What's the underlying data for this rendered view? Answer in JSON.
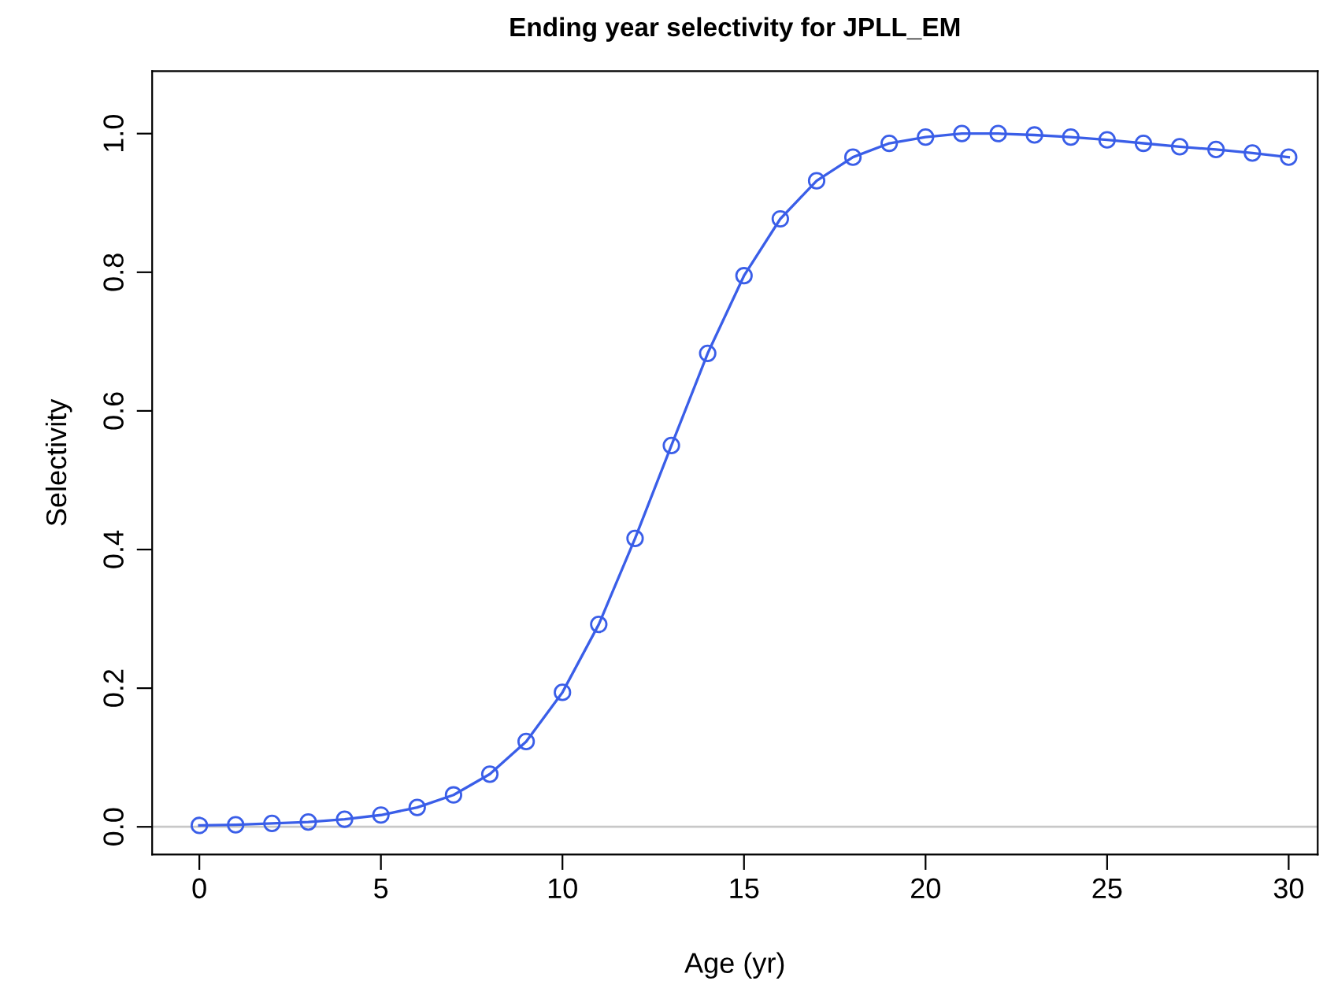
{
  "chart_data": {
    "type": "line",
    "title": "Ending year selectivity for JPLL_EM",
    "xlabel": "Age (yr)",
    "ylabel": "Selectivity",
    "x": [
      0,
      1,
      2,
      3,
      4,
      5,
      6,
      7,
      8,
      9,
      10,
      11,
      12,
      13,
      14,
      15,
      16,
      17,
      18,
      19,
      20,
      21,
      22,
      23,
      24,
      25,
      26,
      27,
      28,
      29,
      30
    ],
    "series": [
      {
        "color": "#3a5ee8",
        "values": [
          0.002,
          0.003,
          0.005,
          0.007,
          0.011,
          0.017,
          0.028,
          0.046,
          0.076,
          0.123,
          0.194,
          0.292,
          0.416,
          0.55,
          0.683,
          0.795,
          0.877,
          0.932,
          0.966,
          0.986,
          0.995,
          1.0,
          1.0,
          0.998,
          0.995,
          0.991,
          0.986,
          0.981,
          0.977,
          0.972,
          0.966
        ]
      }
    ],
    "xlim": [
      -1.3,
      30.8
    ],
    "xticks": [
      0,
      5,
      10,
      15,
      20,
      25,
      30
    ],
    "ylim": [
      -0.04,
      1.09
    ],
    "yticks": [
      {
        "value": 0,
        "label": "0.0"
      },
      0.2,
      0.4,
      0.6,
      0.8,
      {
        "value": 1,
        "label": "1.0"
      }
    ],
    "ref_lines": [
      {
        "axis": "y",
        "value": 0,
        "color": "#c8c8c8"
      }
    ],
    "marker": "circle",
    "line_style": "solid",
    "grid": false,
    "legend": false
  }
}
